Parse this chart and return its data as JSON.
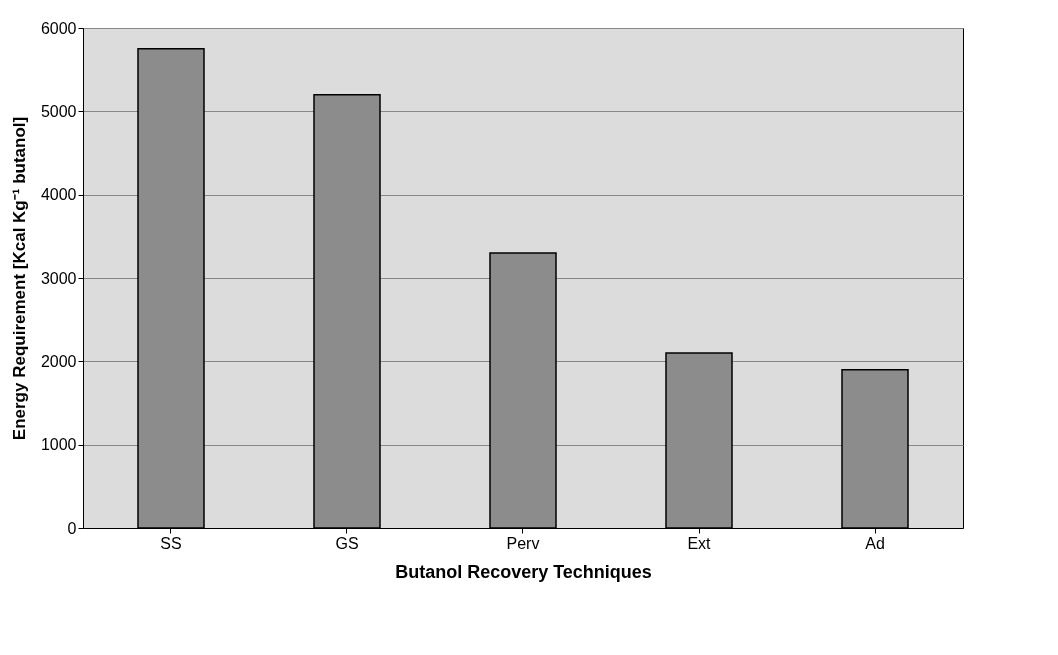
{
  "chart_data": {
    "type": "bar",
    "xlabel": "Butanol Recovery Techniques",
    "ylabel": "Energy Requirement [Kcal Kg⁻¹ butanol]",
    "categories": [
      "SS",
      "GS",
      "Perv",
      "Ext",
      "Ad"
    ],
    "values": [
      5750,
      5200,
      3300,
      2100,
      1900
    ],
    "color": "#8c8c8c",
    "ylim": [
      0,
      6000
    ],
    "yticks": [
      0,
      1000,
      2000,
      3000,
      4000,
      5000,
      6000
    ],
    "grid": "y"
  }
}
